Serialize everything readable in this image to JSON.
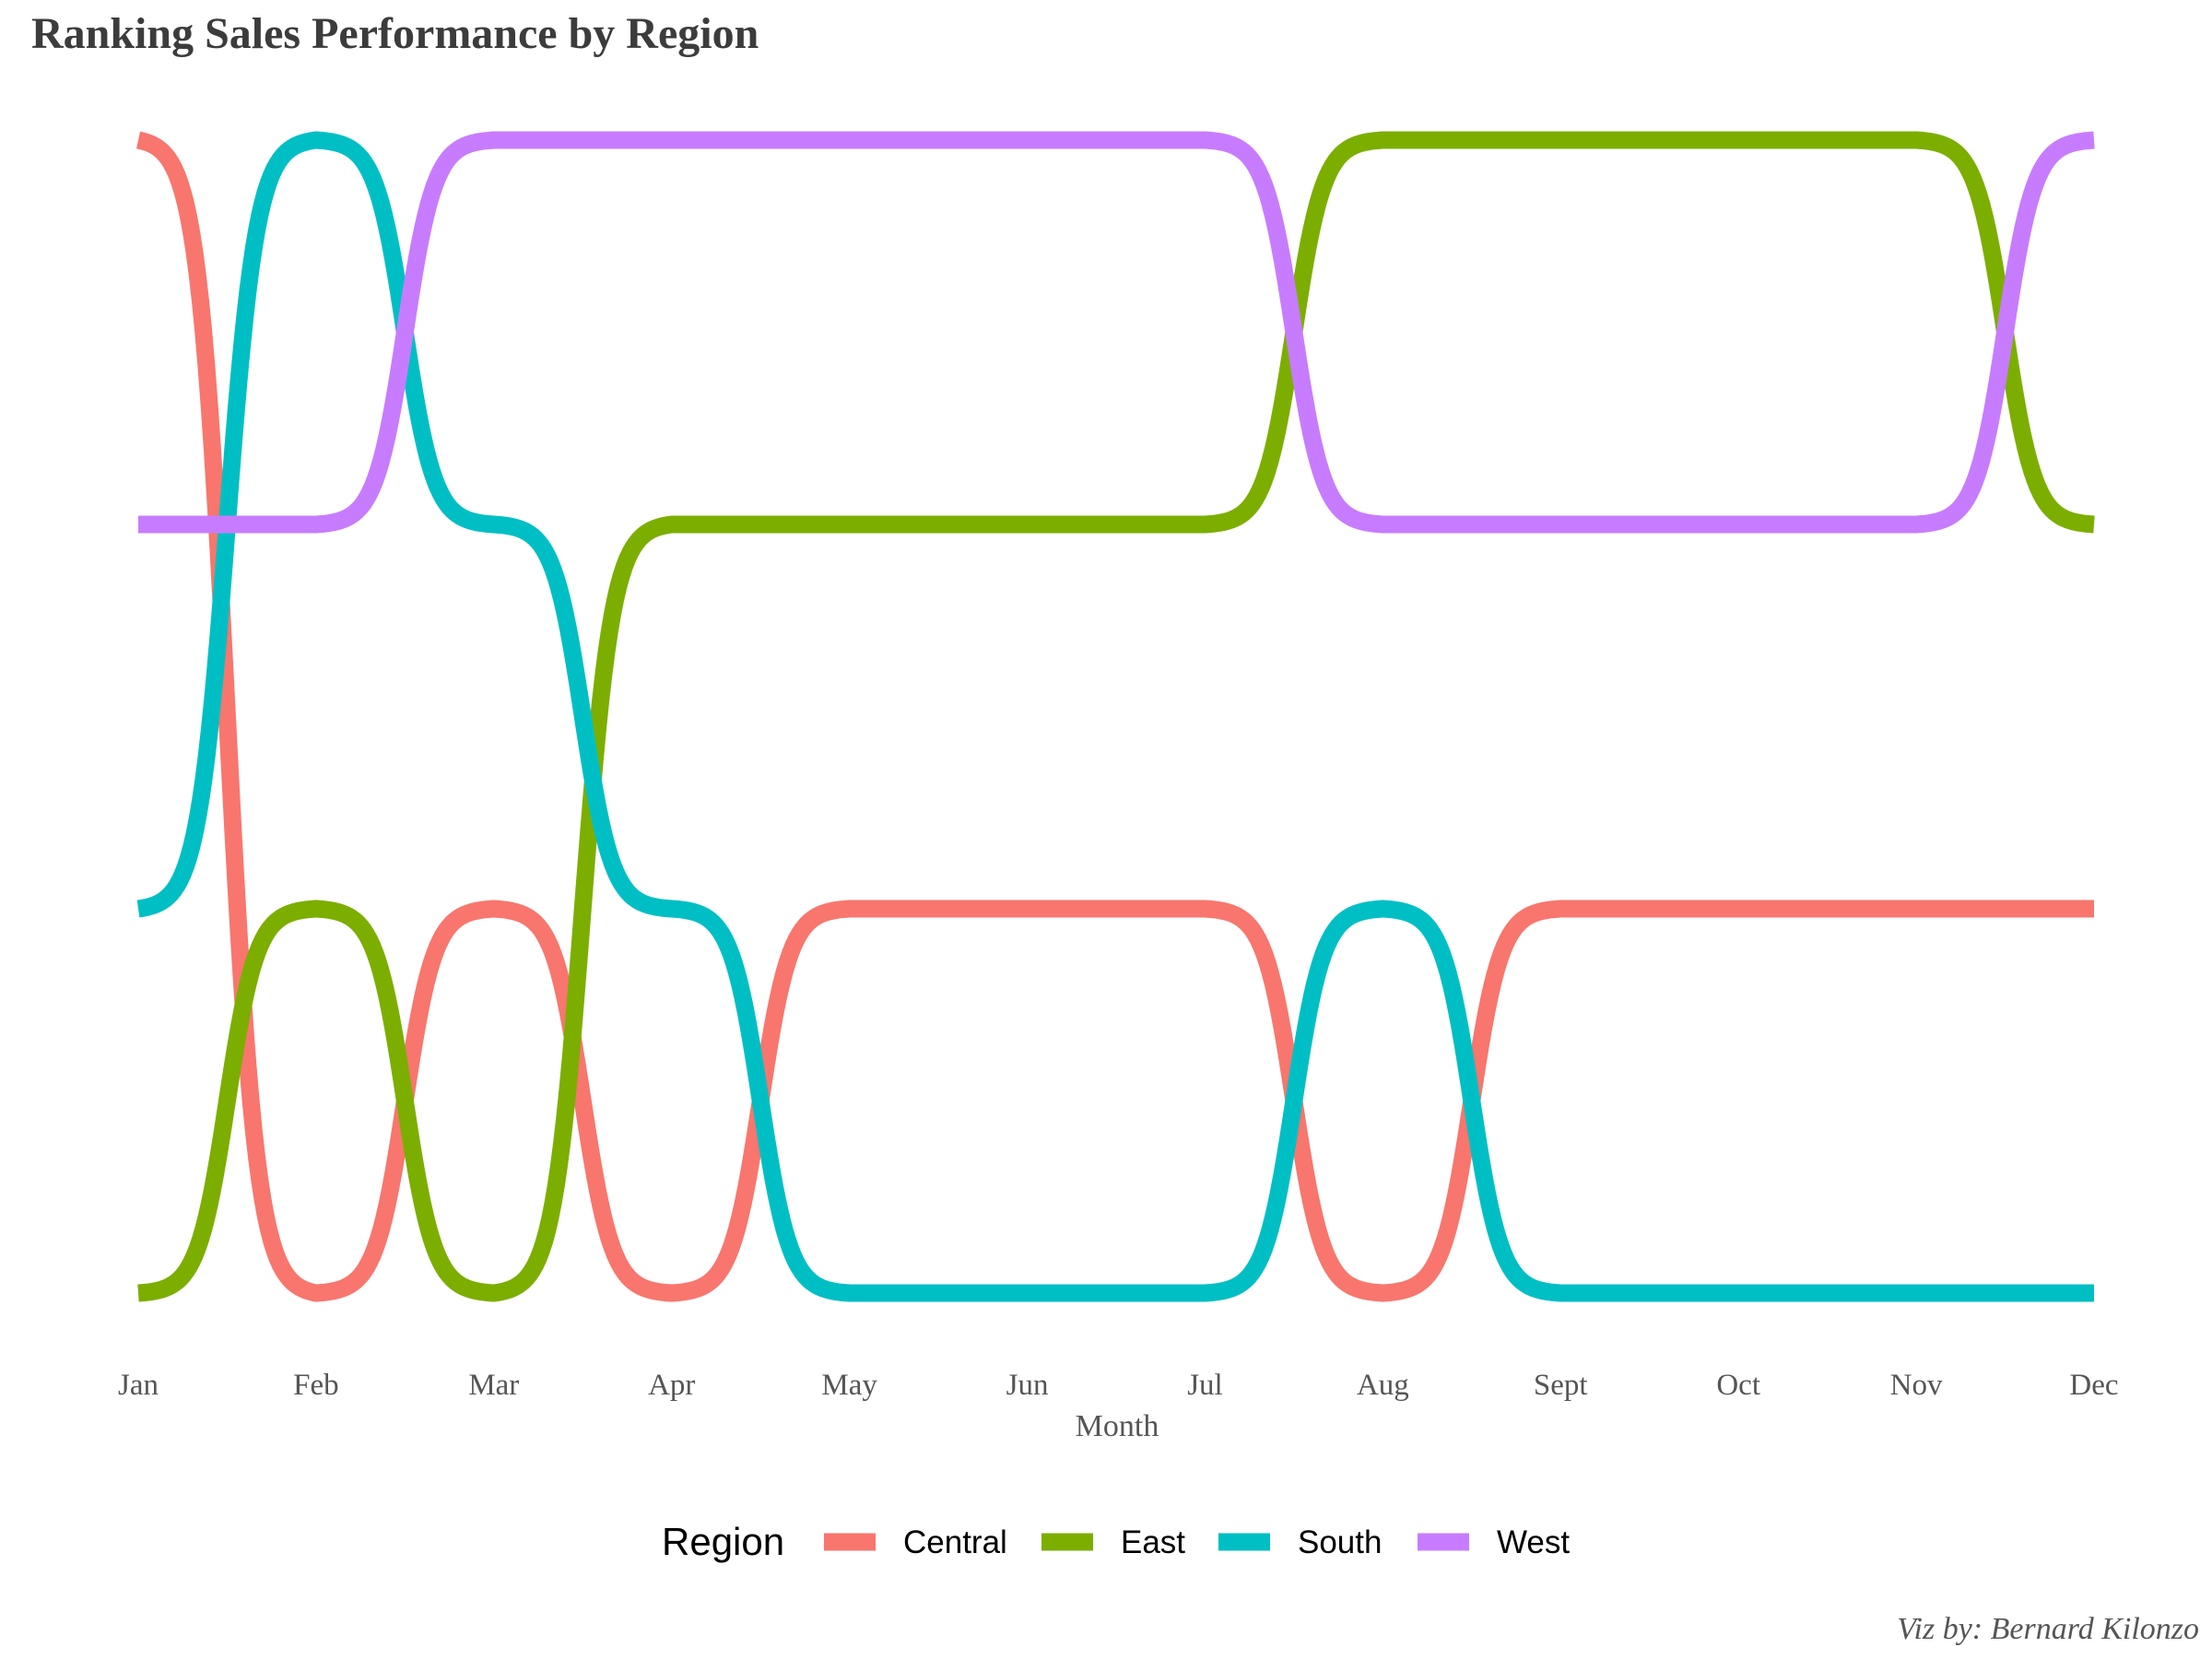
{
  "chart_data": {
    "type": "line",
    "title": "Ranking Sales Performance by Region",
    "xlabel": "Month",
    "ylabel": "",
    "categories": [
      "Jan",
      "Feb",
      "Mar",
      "Apr",
      "May",
      "Jun",
      "Jul",
      "Aug",
      "Sept",
      "Oct",
      "Nov",
      "Dec"
    ],
    "ylim": [
      1,
      4
    ],
    "y_reversed": true,
    "line_style": "bump",
    "grid": false,
    "y_axis_labels_shown": false,
    "legend_position": "bottom",
    "legend_title": "Region",
    "series": [
      {
        "name": "Central",
        "color": "#F8766D",
        "values": [
          1,
          4,
          3,
          4,
          3,
          3,
          3,
          4,
          3,
          3,
          3,
          3
        ]
      },
      {
        "name": "East",
        "color": "#7CAE00",
        "values": [
          4,
          3,
          4,
          2,
          2,
          2,
          2,
          1,
          1,
          1,
          1,
          2
        ]
      },
      {
        "name": "South",
        "color": "#00BFC4",
        "values": [
          3,
          1,
          2,
          3,
          4,
          4,
          4,
          3,
          4,
          4,
          4,
          4
        ]
      },
      {
        "name": "West",
        "color": "#C77CFF",
        "values": [
          2,
          2,
          1,
          1,
          1,
          1,
          1,
          2,
          2,
          2,
          2,
          1
        ]
      }
    ],
    "caption": "Viz by: Bernard Kilonzo"
  }
}
